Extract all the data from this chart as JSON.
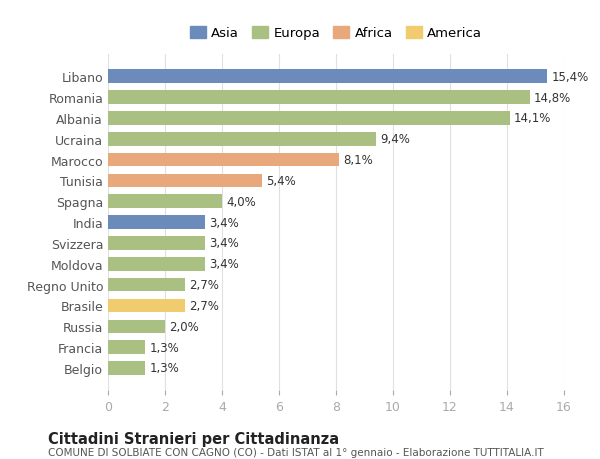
{
  "countries": [
    "Libano",
    "Romania",
    "Albania",
    "Ucraina",
    "Marocco",
    "Tunisia",
    "Spagna",
    "India",
    "Svizzera",
    "Moldova",
    "Regno Unito",
    "Brasile",
    "Russia",
    "Francia",
    "Belgio"
  ],
  "values": [
    15.4,
    14.8,
    14.1,
    9.4,
    8.1,
    5.4,
    4.0,
    3.4,
    3.4,
    3.4,
    2.7,
    2.7,
    2.0,
    1.3,
    1.3
  ],
  "labels": [
    "15,4%",
    "14,8%",
    "14,1%",
    "9,4%",
    "8,1%",
    "5,4%",
    "4,0%",
    "3,4%",
    "3,4%",
    "3,4%",
    "2,7%",
    "2,7%",
    "2,0%",
    "1,3%",
    "1,3%"
  ],
  "continents": [
    "Asia",
    "Europa",
    "Europa",
    "Europa",
    "Africa",
    "Africa",
    "Europa",
    "Asia",
    "Europa",
    "Europa",
    "Europa",
    "America",
    "Europa",
    "Europa",
    "Europa"
  ],
  "colors": {
    "Asia": "#6b8cba",
    "Europa": "#aabf82",
    "Africa": "#e8a87c",
    "America": "#f0cc6e"
  },
  "legend_order": [
    "Asia",
    "Europa",
    "Africa",
    "America"
  ],
  "title": "Cittadini Stranieri per Cittadinanza",
  "subtitle": "COMUNE DI SOLBIATE CON CAGNO (CO) - Dati ISTAT al 1° gennaio - Elaborazione TUTTITALIA.IT",
  "xlim": [
    0,
    16
  ],
  "xticks": [
    0,
    2,
    4,
    6,
    8,
    10,
    12,
    14,
    16
  ],
  "background_color": "#ffffff",
  "grid_color": "#e0e0e0"
}
